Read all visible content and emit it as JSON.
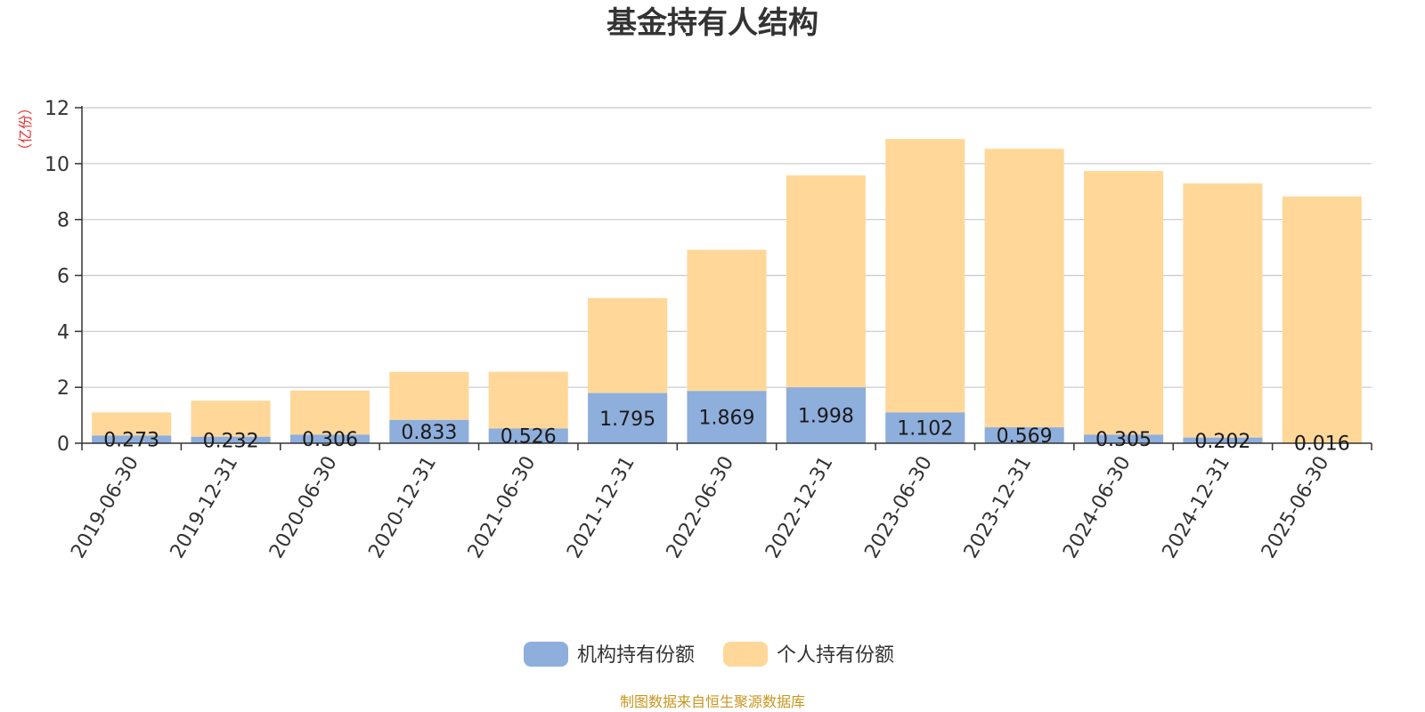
{
  "chart_data": {
    "type": "bar",
    "stacked": true,
    "title": "基金持有人结构",
    "unit_label": "（亿份）",
    "unit_color": "#e8312f",
    "categories": [
      "2019-06-30",
      "2019-12-31",
      "2020-06-30",
      "2020-12-31",
      "2021-06-30",
      "2021-12-31",
      "2022-06-30",
      "2022-12-31",
      "2023-06-30",
      "2023-12-31",
      "2024-06-30",
      "2024-12-31",
      "2025-06-30"
    ],
    "series": [
      {
        "name": "机构持有份额",
        "color": "#8eaedc",
        "values": [
          0.273,
          0.232,
          0.306,
          0.833,
          0.526,
          1.795,
          1.869,
          1.998,
          1.102,
          0.569,
          0.305,
          0.202,
          0.016
        ],
        "labels": [
          "0.273",
          "0.232",
          "0.306",
          "0.833",
          "0.526",
          "1.795",
          "1.869",
          "1.998",
          "1.102",
          "0.569",
          "0.305",
          "0.202",
          "0.016"
        ]
      },
      {
        "name": "个人持有份额",
        "color": "#ffd899",
        "values": [
          0.83,
          1.29,
          1.58,
          1.72,
          2.03,
          3.4,
          5.05,
          7.58,
          9.78,
          9.96,
          9.43,
          9.09,
          8.81
        ]
      }
    ],
    "ylim": [
      0,
      12
    ],
    "yticks": [
      0,
      2,
      4,
      6,
      8,
      10,
      12
    ],
    "grid": true,
    "legend_position": "bottom-center",
    "source_note": "制图数据来自恒生聚源数据库",
    "source_color": "#c8961e"
  }
}
